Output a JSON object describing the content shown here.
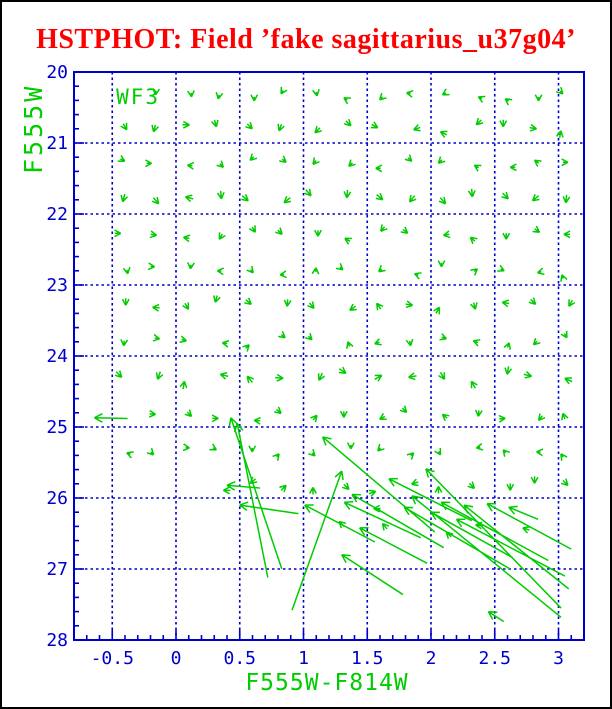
{
  "window": {
    "background": "#ffffff",
    "frame_color": "#000000"
  },
  "title": {
    "text": "HSTPHOT: Field ’fake sagittarius_u37g04’",
    "color": "#ff0000"
  },
  "chart_data": {
    "type": "scatter",
    "subtype": "quiver-vector-field",
    "title": "HSTPHOT: Field ’fake sagittarius_u37g04’",
    "field_label": "WF3",
    "xlabel": "F555W-F814W",
    "ylabel": "F555W",
    "xlim": [
      -0.8,
      3.2
    ],
    "ylim": [
      28,
      20
    ],
    "x_ticks": [
      -0.5,
      0,
      0.5,
      1,
      1.5,
      2,
      2.5,
      3
    ],
    "x_tick_labels": [
      "-0.5",
      "0",
      "0.5",
      "1",
      "1.5",
      "2",
      "2.5",
      "3"
    ],
    "y_ticks": [
      20,
      21,
      22,
      23,
      24,
      25,
      26,
      27,
      28
    ],
    "y_tick_labels": [
      "20",
      "21",
      "22",
      "23",
      "24",
      "25",
      "26",
      "27",
      "28"
    ],
    "x_minor_step": 0.1,
    "y_minor_step": 0.2,
    "grid": {
      "x_step": 0.5,
      "y_step": 1.0,
      "style": "dotted",
      "on": true
    },
    "legend": "none",
    "colors": {
      "axis": "#0000cc",
      "grid": "#0000cc",
      "tick_labels": "#0000cc",
      "axis_titles": "#00cc00",
      "arrows": "#00cc00",
      "title": "#ff0000"
    },
    "grid_arrows": {
      "comment": "small chevron arrows on a semi-regular grid; dirs_deg: 0=right, 90=down(screen), null=no arrow",
      "cols": [
        -0.41,
        -0.16,
        0.09,
        0.34,
        0.59,
        0.84,
        1.09,
        1.34,
        1.59,
        1.84,
        2.09,
        2.34,
        2.59,
        2.82,
        3.05
      ],
      "rows": [
        20.35,
        20.8,
        21.3,
        21.8,
        22.3,
        22.8,
        23.3,
        23.8,
        24.3,
        24.85,
        25.35,
        25.85
      ],
      "dirs_deg": [
        [
          null,
          95,
          85,
          100,
          90,
          120,
          80,
          210,
          135,
          190,
          150,
          205,
          215,
          90,
          45
        ],
        [
          60,
          105,
          0,
          75,
          45,
          110,
          135,
          45,
          30,
          160,
          205,
          135,
          90,
          10,
          280
        ],
        [
          30,
          0,
          185,
          45,
          135,
          40,
          130,
          135,
          180,
          45,
          135,
          210,
          180,
          215,
          0
        ],
        [
          105,
          50,
          195,
          85,
          40,
          140,
          50,
          95,
          40,
          130,
          50,
          85,
          45,
          140,
          95
        ],
        [
          0,
          10,
          190,
          120,
          60,
          45,
          90,
          210,
          130,
          40,
          170,
          220,
          90,
          35,
          180
        ],
        [
          80,
          5,
          95,
          185,
          50,
          175,
          275,
          40,
          140,
          200,
          90,
          320,
          25,
          165,
          250
        ],
        [
          90,
          185,
          60,
          105,
          40,
          95,
          50,
          145,
          235,
          10,
          300,
          75,
          190,
          45,
          120
        ],
        [
          95,
          10,
          15,
          190,
          315,
          40,
          45,
          250,
          160,
          80,
          20,
          200,
          290,
          135,
          60
        ],
        [
          45,
          110,
          280,
          195,
          230,
          5,
          115,
          35,
          330,
          170,
          60,
          240,
          100,
          15,
          205
        ],
        [
          null,
          5,
          45,
          0,
          185,
          40,
          310,
          90,
          150,
          45,
          220,
          95,
          355,
          130,
          250
        ],
        [
          200,
          45,
          5,
          30,
          90,
          310,
          45,
          90,
          135,
          315,
          60,
          170,
          230,
          185,
          235
        ],
        [
          null,
          null,
          null,
          180,
          140,
          315,
          270,
          45,
          340,
          160,
          270,
          45,
          90,
          90,
          45
        ]
      ]
    },
    "extra_small_arrows": [
      [
        1.55,
        26.15,
        180
      ],
      [
        1.28,
        26.33,
        225
      ],
      [
        1.62,
        26.36,
        230
      ],
      [
        2.12,
        26.48,
        225
      ],
      [
        2.35,
        26.38,
        185
      ],
      [
        2.72,
        26.42,
        200
      ]
    ],
    "long_arrows": {
      "comment": "format [head_x, head_y, tail_x, tail_y] in data coords (x=color, y=magnitude)",
      "vectors": [
        [
          -0.64,
          24.87,
          -0.38,
          24.88
        ],
        [
          0.43,
          24.87,
          0.83,
          27.0
        ],
        [
          0.48,
          24.95,
          0.72,
          27.12
        ],
        [
          0.4,
          25.82,
          0.66,
          25.86
        ],
        [
          0.5,
          26.1,
          0.96,
          26.22
        ],
        [
          1.3,
          25.62,
          0.91,
          27.58
        ],
        [
          1.15,
          25.14,
          2.03,
          26.48
        ],
        [
          1.96,
          25.59,
          3.02,
          27.55
        ],
        [
          1.79,
          26.13,
          2.62,
          27.0
        ],
        [
          2.08,
          26.06,
          2.92,
          26.88
        ],
        [
          2.0,
          26.2,
          2.64,
          26.84
        ],
        [
          2.26,
          26.1,
          3.08,
          27.28
        ],
        [
          2.44,
          26.08,
          3.1,
          26.72
        ],
        [
          2.61,
          26.13,
          2.84,
          26.3
        ],
        [
          1.01,
          26.1,
          1.56,
          26.62
        ],
        [
          1.32,
          26.06,
          1.92,
          26.56
        ],
        [
          1.67,
          25.73,
          2.32,
          26.32
        ],
        [
          1.44,
          26.42,
          1.97,
          26.92
        ],
        [
          1.3,
          26.8,
          1.78,
          27.36
        ],
        [
          1.85,
          25.97,
          3.02,
          27.68
        ],
        [
          2.45,
          27.6,
          2.57,
          27.74
        ],
        [
          1.38,
          25.95,
          2.1,
          26.7
        ],
        [
          2.2,
          26.3,
          3.05,
          27.1
        ]
      ]
    }
  }
}
